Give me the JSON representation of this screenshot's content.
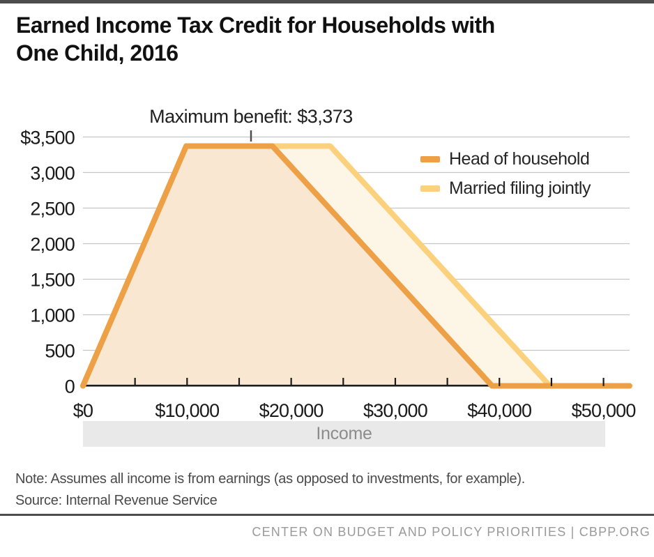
{
  "title": {
    "lines": [
      "Earned Income Tax Credit for Households with",
      "One Child, 2016"
    ]
  },
  "chart_data": {
    "type": "area",
    "annotation": {
      "text": "Maximum benefit: $3,373",
      "value": 3373
    },
    "x_axis": {
      "label": "Income",
      "range": [
        0,
        52500
      ],
      "minor_tick_step": 5000,
      "ticks": [
        {
          "value": 0,
          "label": "$0"
        },
        {
          "value": 10000,
          "label": "$10,000"
        },
        {
          "value": 20000,
          "label": "$20,000"
        },
        {
          "value": 30000,
          "label": "$30,000"
        },
        {
          "value": 40000,
          "label": "$40,000"
        },
        {
          "value": 50000,
          "label": "$50,000"
        }
      ]
    },
    "y_axis": {
      "range": [
        0,
        3500
      ],
      "ticks": [
        {
          "value": 3500,
          "label": "$3,500"
        },
        {
          "value": 3000,
          "label": "3,000"
        },
        {
          "value": 2500,
          "label": "2,500"
        },
        {
          "value": 2000,
          "label": "2,000"
        },
        {
          "value": 1500,
          "label": "1,500"
        },
        {
          "value": 1000,
          "label": "1,000"
        },
        {
          "value": 500,
          "label": "500"
        },
        {
          "value": 0,
          "label": "0"
        }
      ]
    },
    "series": [
      {
        "name": "Married filing jointly",
        "color": "#FBD17D",
        "fill": "#FDF6E6",
        "points": [
          [
            0,
            0
          ],
          [
            9920,
            3373
          ],
          [
            23740,
            3373
          ],
          [
            44846,
            0
          ],
          [
            52500,
            0
          ]
        ]
      },
      {
        "name": "Head of household",
        "color": "#EDA045",
        "fill": "#F9E7D2",
        "points": [
          [
            0,
            0
          ],
          [
            9920,
            3373
          ],
          [
            18190,
            3373
          ],
          [
            39296,
            0
          ],
          [
            52500,
            0
          ]
        ]
      }
    ],
    "legend": {
      "position": "top-right",
      "entries": [
        {
          "label": "Head of household",
          "color": "#EDA045"
        },
        {
          "label": "Married filing jointly",
          "color": "#FBD17D"
        }
      ]
    },
    "grid_color": "#C5C5C5",
    "axis_color": "#1A1A1A"
  },
  "colors": {
    "accent_bar": "#4D4D4D"
  },
  "notes": {
    "note": "Note: Assumes all income is from earnings (as opposed to investments, for example).",
    "source": "Source: Internal Revenue Service"
  },
  "footer": {
    "credit": "CENTER ON BUDGET AND POLICY PRIORITIES | CBPP.ORG"
  }
}
